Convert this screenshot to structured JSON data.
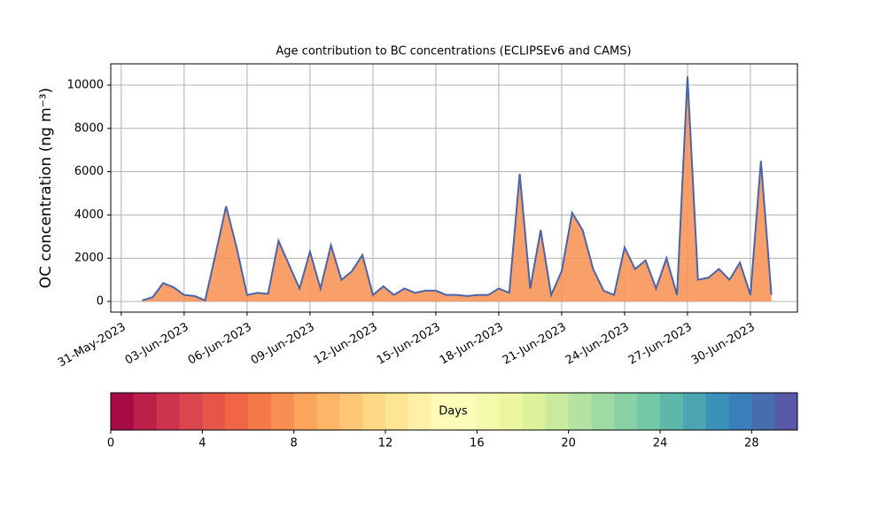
{
  "chart_data": {
    "type": "area",
    "title": "Age contribution to BC concentrations (ECLIPSEv6 and CAMS)",
    "y_label": "OC concentration (ng m⁻³)",
    "x": [
      1.0,
      1.5,
      2.0,
      2.5,
      3.0,
      3.5,
      4.0,
      4.5,
      5.0,
      5.5,
      6.0,
      6.5,
      7.0,
      7.5,
      8.0,
      8.5,
      9.0,
      9.5,
      10.0,
      10.5,
      11.0,
      11.5,
      12.0,
      12.5,
      13.0,
      13.5,
      14.0,
      14.5,
      15.0,
      15.5,
      16.0,
      16.5,
      17.0,
      17.5,
      18.0,
      18.5,
      19.0,
      19.5,
      20.0,
      20.5,
      21.0,
      21.5,
      22.0,
      22.5,
      23.0,
      23.5,
      24.0,
      24.5,
      25.0,
      25.5,
      26.0,
      26.5,
      27.0,
      27.5,
      28.0,
      28.5,
      29.0,
      29.5,
      30.0,
      30.5,
      31.0
    ],
    "series": [
      {
        "color": "#4a64a8",
        "fill": "#f7955a",
        "values": [
          50,
          200,
          850,
          650,
          300,
          250,
          50,
          2200,
          4400,
          2500,
          300,
          400,
          350,
          2800,
          1700,
          600,
          2300,
          600,
          2600,
          1000,
          1400,
          2150,
          300,
          700,
          300,
          600,
          400,
          500,
          500,
          300,
          300,
          250,
          300,
          300,
          600,
          400,
          5900,
          600,
          3300,
          300,
          1400,
          4100,
          3300,
          1500,
          500,
          300,
          2500,
          1500,
          1900,
          600,
          2000,
          300,
          10400,
          1000,
          1100,
          1500,
          1000,
          1800,
          300,
          6500,
          300
        ]
      }
    ],
    "xlim": [
      -0.5,
      32.24
    ],
    "xticks": [
      {
        "value": 0,
        "label": "31-May-2023"
      },
      {
        "value": 3,
        "label": "03-Jun-2023"
      },
      {
        "value": 6,
        "label": "06-Jun-2023"
      },
      {
        "value": 9,
        "label": "09-Jun-2023"
      },
      {
        "value": 12,
        "label": "12-Jun-2023"
      },
      {
        "value": 15,
        "label": "15-Jun-2023"
      },
      {
        "value": 18,
        "label": "18-Jun-2023"
      },
      {
        "value": 21,
        "label": "21-Jun-2023"
      },
      {
        "value": 24,
        "label": "24-Jun-2023"
      },
      {
        "value": 27,
        "label": "27-Jun-2023"
      },
      {
        "value": 30,
        "label": "30-Jun-2023"
      }
    ],
    "ylim": [
      -492,
      10984
    ],
    "yticks": [
      0,
      2000,
      4000,
      6000,
      8000,
      10000
    ],
    "grid": true,
    "colorbar": {
      "label": "Days",
      "clim": [
        0,
        30
      ],
      "ticks": [
        0,
        4,
        8,
        12,
        16,
        20,
        24,
        28
      ],
      "colormap": [
        "#9e0142",
        "#d53e4f",
        "#f46d43",
        "#fdae61",
        "#fee08b",
        "#ffffbf",
        "#e6f598",
        "#abdda4",
        "#66c2a5",
        "#3288bd",
        "#5e4fa2"
      ]
    }
  }
}
